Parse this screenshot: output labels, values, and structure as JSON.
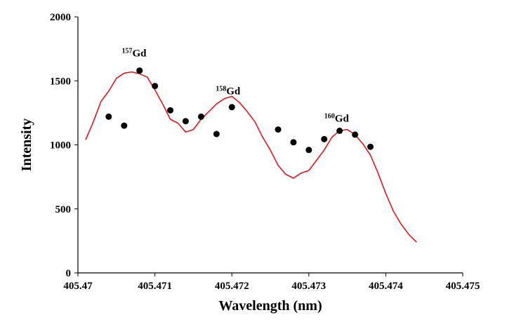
{
  "chart_data": {
    "type": "scatter",
    "title": "",
    "xlabel": "Wavelength (nm)",
    "ylabel": "Intensity",
    "xlim": [
      405.47,
      405.475
    ],
    "ylim": [
      0,
      2000
    ],
    "x_ticks": [
      "405.47",
      "405.471",
      "405.472",
      "405.473",
      "405.474",
      "405.475"
    ],
    "y_ticks": [
      "0",
      "500",
      "1000",
      "1500",
      "2000"
    ],
    "grid": false,
    "legend": "none",
    "colors": {
      "line": "#e8141b",
      "points": "#000000"
    },
    "series": [
      {
        "type": "line",
        "x": [
          405.4701,
          405.4702,
          405.4703,
          405.4704,
          405.4705,
          405.4706,
          405.4707,
          405.4708,
          405.4709,
          405.471,
          405.4711,
          405.4712,
          405.4713,
          405.4714,
          405.4715,
          405.4716,
          405.4717,
          405.4718,
          405.4719,
          405.472,
          405.4721,
          405.4722,
          405.4723,
          405.4724,
          405.4725,
          405.4726,
          405.4727,
          405.4728,
          405.4729,
          405.473,
          405.4731,
          405.4732,
          405.4733,
          405.4734,
          405.4735,
          405.4736,
          405.4737,
          405.4738,
          405.4739,
          405.474,
          405.4741,
          405.4742,
          405.4743,
          405.4744
        ],
        "values": [
          1040,
          1180,
          1340,
          1420,
          1520,
          1560,
          1570,
          1555,
          1530,
          1430,
          1320,
          1200,
          1170,
          1100,
          1120,
          1200,
          1260,
          1320,
          1360,
          1380,
          1330,
          1260,
          1180,
          1060,
          960,
          840,
          770,
          740,
          780,
          800,
          880,
          960,
          1060,
          1110,
          1120,
          1080,
          1010,
          920,
          780,
          620,
          480,
          380,
          300,
          240
        ]
      },
      {
        "type": "scatter",
        "x": [
          405.4704,
          405.4706,
          405.4708,
          405.471,
          405.4712,
          405.4714,
          405.4716,
          405.4718,
          405.472,
          405.4726,
          405.4728,
          405.473,
          405.4732,
          405.4734,
          405.4736,
          405.4738
        ],
        "values": [
          1220,
          1150,
          1580,
          1460,
          1270,
          1185,
          1220,
          1085,
          1295,
          1120,
          1020,
          960,
          1045,
          1110,
          1080,
          985
        ]
      }
    ],
    "annotations": [
      {
        "mass": "157",
        "element": "Gd",
        "x": 405.47073,
        "y": 1690
      },
      {
        "mass": "158",
        "element": "Gd",
        "x": 405.47195,
        "y": 1395
      },
      {
        "mass": "160",
        "element": "Gd",
        "x": 405.47336,
        "y": 1180
      }
    ]
  }
}
